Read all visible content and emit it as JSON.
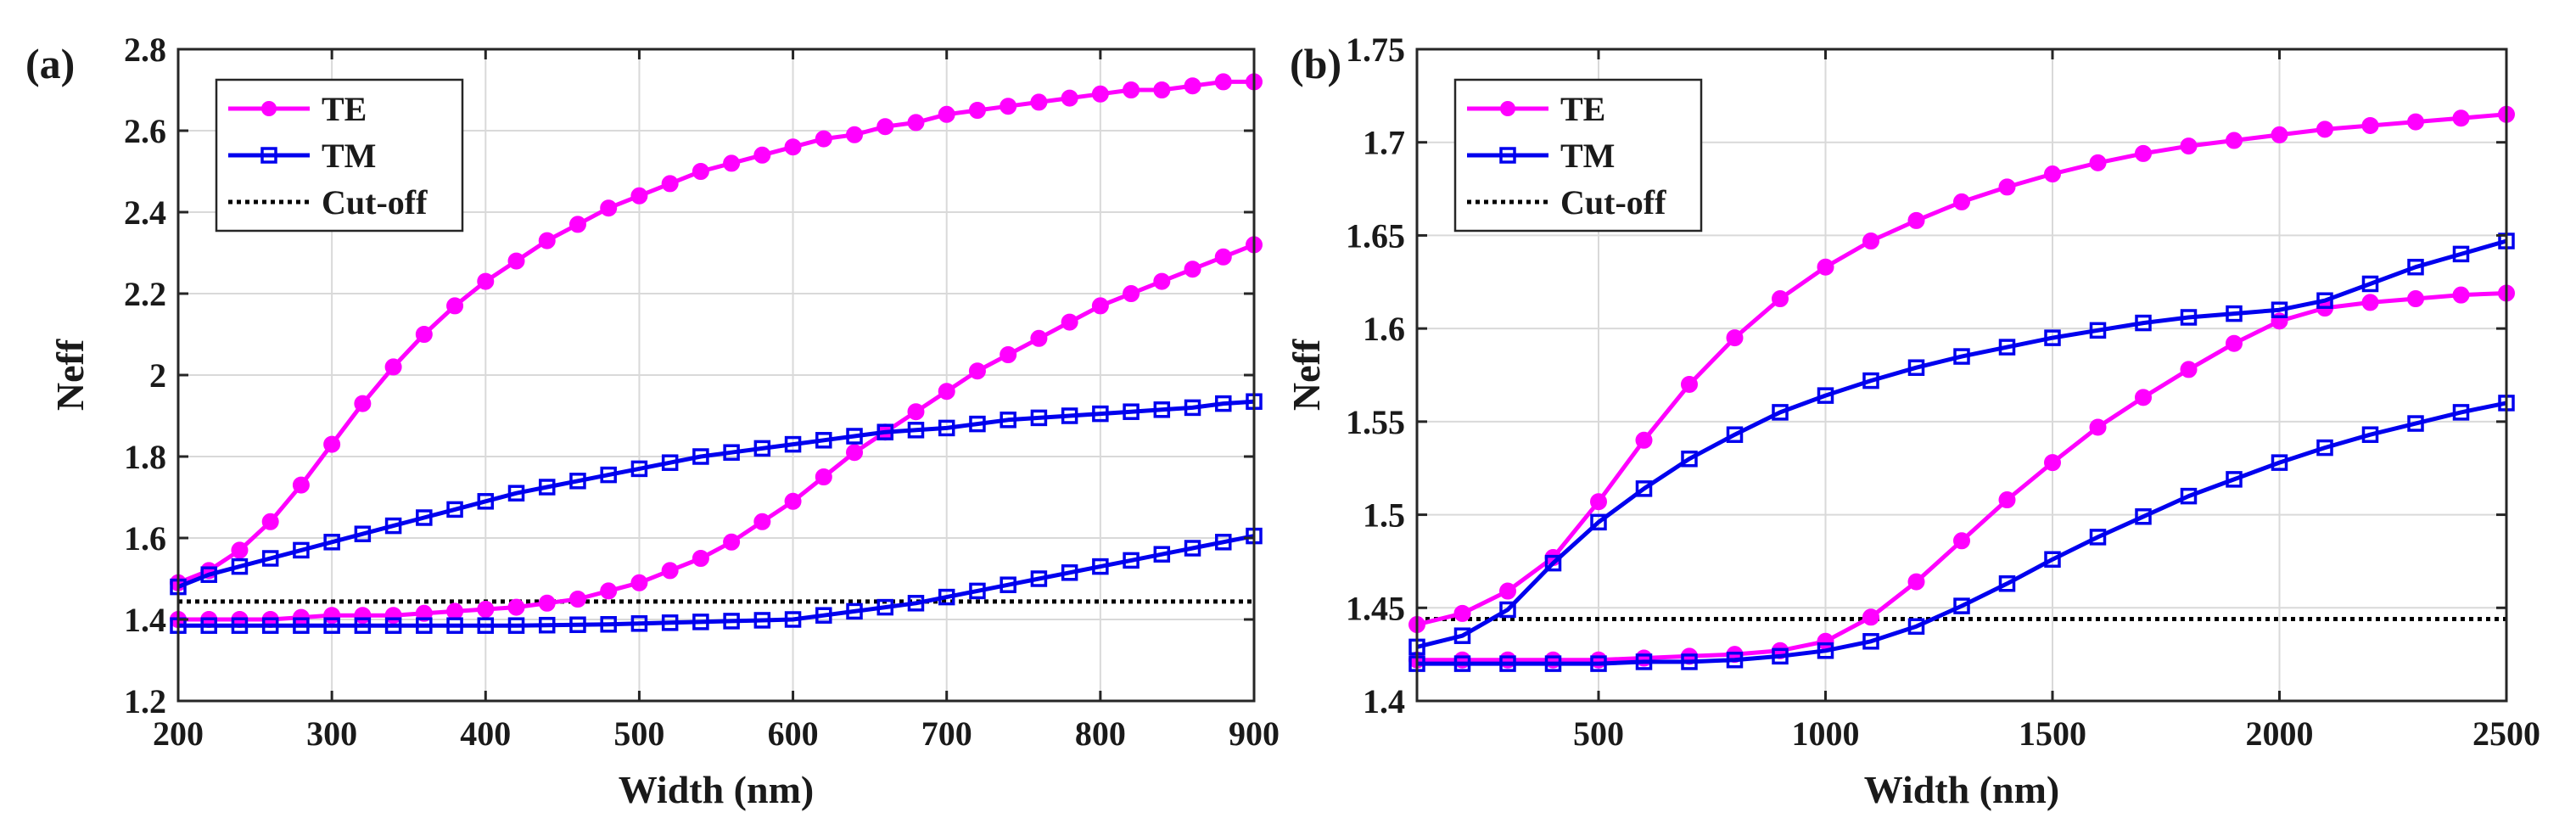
{
  "figure": {
    "panels": [
      "(a)",
      "(b)"
    ]
  },
  "chart_data": [
    {
      "panel_label": "(a)",
      "type": "line",
      "xlabel": "Width (nm)",
      "ylabel": "Neff",
      "xlim": [
        200,
        900
      ],
      "ylim": [
        1.2,
        2.8
      ],
      "xticks": [
        200,
        300,
        400,
        500,
        600,
        700,
        800,
        900
      ],
      "yticks": [
        1.2,
        1.4,
        1.6,
        1.8,
        2,
        2.2,
        2.4,
        2.6,
        2.8
      ],
      "xtick_labels": [
        "200",
        "300",
        "400",
        "500",
        "600",
        "700",
        "800",
        "900"
      ],
      "ytick_labels": [
        "1.2",
        "1.4",
        "1.6",
        "1.8",
        "2",
        "2.2",
        "2.4",
        "2.6",
        "2.8"
      ],
      "grid": true,
      "legend": [
        "TE",
        "TM",
        "Cut-off"
      ],
      "legend_position": "top-left",
      "colors": {
        "TE": "#ff00ff",
        "TM": "#0000ee",
        "cutoff": "#000000"
      },
      "cutoff": 1.444,
      "series": [
        {
          "name": "TE",
          "mode": "TE0",
          "x": [
            200,
            220,
            240,
            260,
            280,
            300,
            320,
            340,
            360,
            380,
            400,
            420,
            440,
            460,
            480,
            500,
            520,
            540,
            560,
            580,
            600,
            620,
            640,
            660,
            680,
            700,
            720,
            740,
            760,
            780,
            800,
            820,
            840,
            860,
            880,
            900
          ],
          "y": [
            1.49,
            1.52,
            1.57,
            1.64,
            1.73,
            1.83,
            1.93,
            2.02,
            2.1,
            2.17,
            2.23,
            2.28,
            2.33,
            2.37,
            2.41,
            2.44,
            2.47,
            2.5,
            2.52,
            2.54,
            2.56,
            2.58,
            2.59,
            2.61,
            2.62,
            2.64,
            2.65,
            2.66,
            2.67,
            2.68,
            2.69,
            2.7,
            2.7,
            2.71,
            2.72,
            2.72
          ]
        },
        {
          "name": "TE",
          "mode": "TE1",
          "x": [
            200,
            220,
            240,
            260,
            280,
            300,
            320,
            340,
            360,
            380,
            400,
            420,
            440,
            460,
            480,
            500,
            520,
            540,
            560,
            580,
            600,
            620,
            640,
            660,
            680,
            700,
            720,
            740,
            760,
            780,
            800,
            820,
            840,
            860,
            880,
            900
          ],
          "y": [
            1.4,
            1.4,
            1.4,
            1.4,
            1.405,
            1.41,
            1.41,
            1.41,
            1.415,
            1.42,
            1.425,
            1.43,
            1.44,
            1.45,
            1.47,
            1.49,
            1.52,
            1.55,
            1.59,
            1.64,
            1.69,
            1.75,
            1.81,
            1.86,
            1.91,
            1.96,
            2.01,
            2.05,
            2.09,
            2.13,
            2.17,
            2.2,
            2.23,
            2.26,
            2.29,
            2.32
          ]
        },
        {
          "name": "TM",
          "mode": "TM0",
          "x": [
            200,
            220,
            240,
            260,
            280,
            300,
            320,
            340,
            360,
            380,
            400,
            420,
            440,
            460,
            480,
            500,
            520,
            540,
            560,
            580,
            600,
            620,
            640,
            660,
            680,
            700,
            720,
            740,
            760,
            780,
            800,
            820,
            840,
            860,
            880,
            900
          ],
          "y": [
            1.48,
            1.51,
            1.53,
            1.55,
            1.57,
            1.59,
            1.61,
            1.63,
            1.65,
            1.67,
            1.69,
            1.71,
            1.725,
            1.74,
            1.755,
            1.77,
            1.785,
            1.8,
            1.81,
            1.82,
            1.83,
            1.84,
            1.85,
            1.86,
            1.865,
            1.87,
            1.88,
            1.89,
            1.895,
            1.9,
            1.905,
            1.91,
            1.915,
            1.92,
            1.93,
            1.935
          ]
        },
        {
          "name": "TM",
          "mode": "TM1",
          "x": [
            200,
            220,
            240,
            260,
            280,
            300,
            320,
            340,
            360,
            380,
            400,
            420,
            440,
            460,
            480,
            500,
            520,
            540,
            560,
            580,
            600,
            620,
            640,
            660,
            680,
            700,
            720,
            740,
            760,
            780,
            800,
            820,
            840,
            860,
            880,
            900
          ],
          "y": [
            1.385,
            1.385,
            1.385,
            1.385,
            1.385,
            1.385,
            1.385,
            1.385,
            1.385,
            1.385,
            1.385,
            1.385,
            1.386,
            1.387,
            1.388,
            1.39,
            1.392,
            1.394,
            1.396,
            1.398,
            1.4,
            1.41,
            1.42,
            1.43,
            1.44,
            1.455,
            1.47,
            1.485,
            1.5,
            1.515,
            1.53,
            1.545,
            1.56,
            1.575,
            1.59,
            1.605
          ]
        }
      ]
    },
    {
      "panel_label": "(b)",
      "type": "line",
      "xlabel": "Width (nm)",
      "ylabel": "Neff",
      "xlim": [
        100,
        2500
      ],
      "ylim": [
        1.4,
        1.75
      ],
      "xticks": [
        500,
        1000,
        1500,
        2000,
        2500
      ],
      "yticks": [
        1.4,
        1.45,
        1.5,
        1.55,
        1.6,
        1.65,
        1.7,
        1.75
      ],
      "xtick_labels": [
        "500",
        "1000",
        "1500",
        "2000",
        "2500"
      ],
      "ytick_labels": [
        "1.4",
        "1.45",
        "1.5",
        "1.55",
        "1.6",
        "1.65",
        "1.7",
        "1.75"
      ],
      "grid": true,
      "legend": [
        "TE",
        "TM",
        "Cut-off"
      ],
      "legend_position": "top-left",
      "colors": {
        "TE": "#ff00ff",
        "TM": "#0000ee",
        "cutoff": "#000000"
      },
      "cutoff": 1.444,
      "series": [
        {
          "name": "TE",
          "mode": "TE0",
          "x": [
            100,
            200,
            300,
            400,
            500,
            600,
            700,
            800,
            900,
            1000,
            1100,
            1200,
            1300,
            1400,
            1500,
            1600,
            1700,
            1800,
            1900,
            2000,
            2100,
            2200,
            2300,
            2400,
            2500
          ],
          "y": [
            1.441,
            1.447,
            1.459,
            1.477,
            1.507,
            1.54,
            1.57,
            1.595,
            1.616,
            1.633,
            1.647,
            1.658,
            1.668,
            1.676,
            1.683,
            1.689,
            1.694,
            1.698,
            1.701,
            1.704,
            1.707,
            1.709,
            1.711,
            1.713,
            1.715
          ]
        },
        {
          "name": "TE",
          "mode": "TE1",
          "x": [
            100,
            200,
            300,
            400,
            500,
            600,
            700,
            800,
            900,
            1000,
            1100,
            1200,
            1300,
            1400,
            1500,
            1600,
            1700,
            1800,
            1900,
            2000,
            2100,
            2200,
            2300,
            2400,
            2500
          ],
          "y": [
            1.422,
            1.422,
            1.422,
            1.422,
            1.422,
            1.423,
            1.424,
            1.425,
            1.427,
            1.432,
            1.445,
            1.464,
            1.486,
            1.508,
            1.528,
            1.547,
            1.563,
            1.578,
            1.592,
            1.604,
            1.611,
            1.614,
            1.616,
            1.618,
            1.619
          ]
        },
        {
          "name": "TM",
          "mode": "TM0",
          "x": [
            100,
            200,
            300,
            400,
            500,
            600,
            700,
            800,
            900,
            1000,
            1100,
            1200,
            1300,
            1400,
            1500,
            1600,
            1700,
            1800,
            1900,
            2000,
            2100,
            2200,
            2300,
            2400,
            2500
          ],
          "y": [
            1.429,
            1.435,
            1.449,
            1.474,
            1.496,
            1.514,
            1.53,
            1.543,
            1.555,
            1.564,
            1.572,
            1.579,
            1.585,
            1.59,
            1.595,
            1.599,
            1.603,
            1.606,
            1.608,
            1.61,
            1.615,
            1.624,
            1.633,
            1.64,
            1.647
          ]
        },
        {
          "name": "TM",
          "mode": "TM1",
          "x": [
            100,
            200,
            300,
            400,
            500,
            600,
            700,
            800,
            900,
            1000,
            1100,
            1200,
            1300,
            1400,
            1500,
            1600,
            1700,
            1800,
            1900,
            2000,
            2100,
            2200,
            2300,
            2400,
            2500
          ],
          "y": [
            1.42,
            1.42,
            1.42,
            1.42,
            1.42,
            1.421,
            1.421,
            1.422,
            1.424,
            1.427,
            1.432,
            1.44,
            1.451,
            1.463,
            1.476,
            1.488,
            1.499,
            1.51,
            1.519,
            1.528,
            1.536,
            1.543,
            1.549,
            1.555,
            1.56
          ]
        }
      ]
    }
  ]
}
